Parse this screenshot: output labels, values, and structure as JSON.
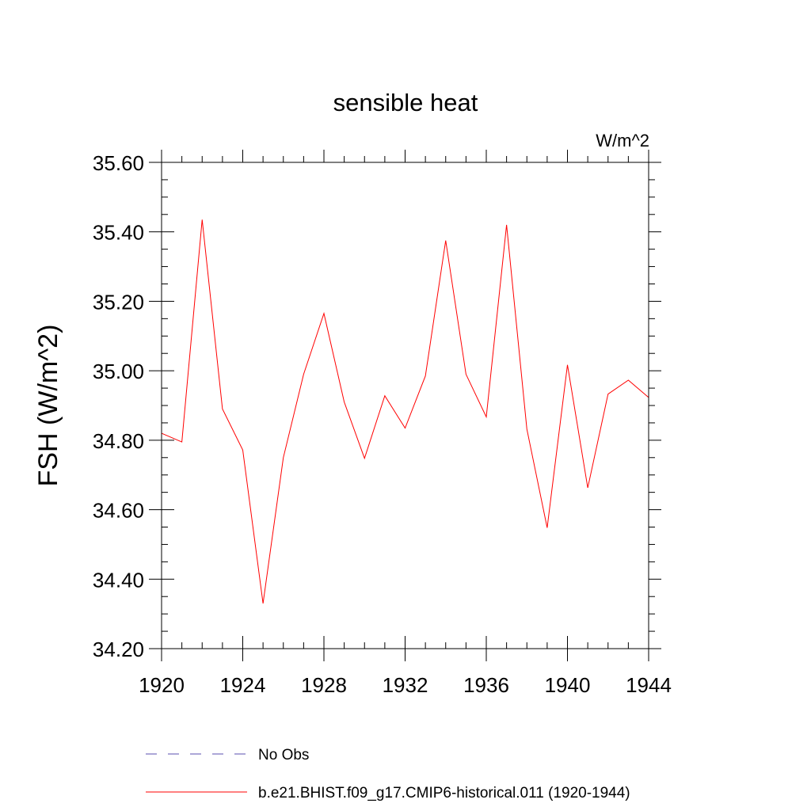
{
  "chart_data": {
    "type": "line",
    "title": "sensible heat",
    "units_label": "W/m^2",
    "ylabel": "FSH  (W/m^2)",
    "xlabel": "",
    "xlim": [
      1920,
      1944
    ],
    "ylim": [
      34.2,
      35.6
    ],
    "x_ticks": [
      "1920",
      "1924",
      "1928",
      "1932",
      "1936",
      "1940",
      "1944"
    ],
    "y_ticks": [
      "34.20",
      "34.40",
      "34.60",
      "34.80",
      "35.00",
      "35.20",
      "35.40",
      "35.60"
    ],
    "grid": false,
    "legend_placement": "bottom",
    "series": [
      {
        "name": "No Obs",
        "color": "#5a4fb0",
        "dash": true,
        "x": [],
        "values": []
      },
      {
        "name": "b.e21.BHIST.f09_g17.CMIP6-historical.011 (1920-1944)",
        "color": "#ff0000",
        "dash": false,
        "x": [
          1920,
          1921,
          1922,
          1923,
          1924,
          1925,
          1926,
          1927,
          1928,
          1929,
          1930,
          1931,
          1932,
          1933,
          1934,
          1935,
          1936,
          1937,
          1938,
          1939,
          1940,
          1941,
          1942,
          1943,
          1944
        ],
        "values": [
          34.82,
          34.795,
          35.435,
          34.89,
          34.772,
          34.33,
          34.75,
          34.99,
          35.165,
          34.91,
          34.748,
          34.928,
          34.835,
          34.985,
          35.375,
          34.99,
          34.867,
          35.42,
          34.832,
          34.548,
          35.017,
          34.663,
          34.933,
          34.973,
          34.923
        ]
      }
    ]
  }
}
